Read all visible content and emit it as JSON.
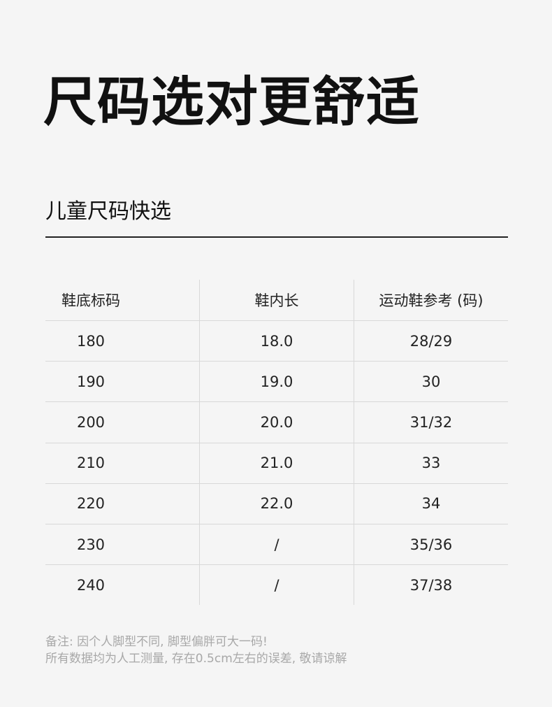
{
  "title": "尺码选对更舒适",
  "subtitle": "儿童尺码快选",
  "table": {
    "headers": [
      "鞋底标码",
      "鞋内长",
      "运动鞋参考 (码)"
    ],
    "rows": [
      [
        "180",
        "18.0",
        "28/29"
      ],
      [
        "190",
        "19.0",
        "30"
      ],
      [
        "200",
        "20.0",
        "31/32"
      ],
      [
        "210",
        "21.0",
        "33"
      ],
      [
        "220",
        "22.0",
        "34"
      ],
      [
        "230",
        "/",
        "35/36"
      ],
      [
        "240",
        "/",
        "37/38"
      ]
    ]
  },
  "footer": {
    "line1": "备注: 因个人脚型不同, 脚型偏胖可大一码!",
    "line2": "所有数据均为人工测量, 存在0.5cm左右的误差, 敬请谅解"
  }
}
